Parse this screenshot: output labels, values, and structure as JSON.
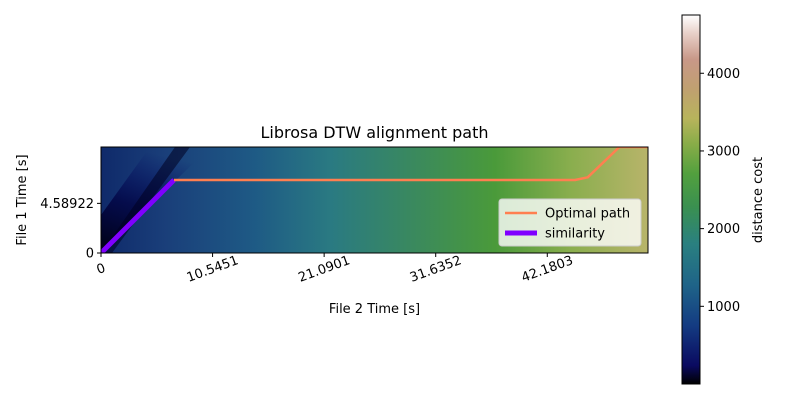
{
  "chart_data": {
    "type": "heatmap",
    "title": "Librosa DTW alignment path",
    "xlabel": "File 2 Time [s]",
    "ylabel": "File 1 Time [s]",
    "xlim": [
      0,
      51.7
    ],
    "ylim": [
      0,
      9.8
    ],
    "x_ticks": [
      {
        "value": 0,
        "label": "0"
      },
      {
        "value": 10.5451,
        "label": "10.5451"
      },
      {
        "value": 21.0901,
        "label": "21.0901"
      },
      {
        "value": 31.6352,
        "label": "31.6352"
      },
      {
        "value": 42.1803,
        "label": "42.1803"
      }
    ],
    "y_ticks": [
      {
        "value": 0,
        "label": "0"
      },
      {
        "value": 4.58922,
        "label": "4.58922"
      }
    ],
    "colorbar": {
      "label": "distance cost",
      "range": [
        0,
        4750
      ],
      "ticks": [
        1000,
        2000,
        3000,
        4000
      ],
      "colormap": "gist_earth"
    },
    "legend": {
      "placement": "lower-right"
    },
    "series": [
      {
        "name": "Optimal path",
        "color": "#ff7f50",
        "points": [
          [
            6.9,
            6.75
          ],
          [
            44.8,
            6.75
          ],
          [
            46.0,
            7.0
          ],
          [
            49.0,
            9.8
          ],
          [
            51.7,
            9.8
          ]
        ]
      },
      {
        "name": "similarity",
        "color": "#8000ff",
        "points": [
          [
            0,
            0
          ],
          [
            6.9,
            6.75
          ]
        ]
      }
    ]
  }
}
